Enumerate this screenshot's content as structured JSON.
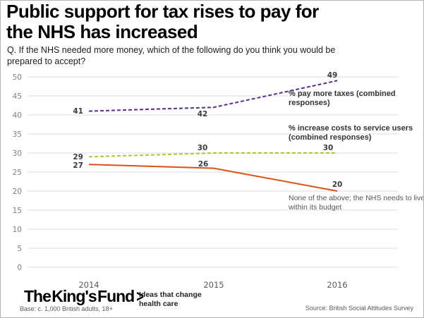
{
  "header": {
    "title": "Public support for tax rises to pay for\nthe NHS has increased",
    "question": "Q. If the NHS needed more money, which of the following do you think you would be\nprepared to accept?"
  },
  "chart_data": {
    "type": "line",
    "x": [
      "2014",
      "2015",
      "2016"
    ],
    "ylim": [
      0,
      50
    ],
    "ytick_step": 5,
    "grid": true,
    "legend_position": "inline-annotations",
    "series": [
      {
        "name": "% pay more taxes (combined responses)",
        "values": [
          41,
          42,
          49
        ],
        "color": "#5c2d8c",
        "style": "dashed"
      },
      {
        "name": "% increase costs to service users (combined responses)",
        "values": [
          29,
          30,
          30
        ],
        "color": "#aec636",
        "style": "dashed"
      },
      {
        "name": "None of the above; the NHS needs to live within its budget",
        "values": [
          27,
          26,
          20
        ],
        "color": "#dc5215",
        "style": "solid"
      }
    ],
    "axis_text_color": "#7f7f7f",
    "data_label_color": "#3c3c3c",
    "gridline_color": "#dcdcdc"
  },
  "footer": {
    "logo_text": "The King's Fund",
    "logo_chevron": ">",
    "tagline": "Ideas that change\nhealth care",
    "base_note": "Base: c. 1,000 British adults, 18+",
    "source": "Source: British Social Attitudes Survey"
  }
}
